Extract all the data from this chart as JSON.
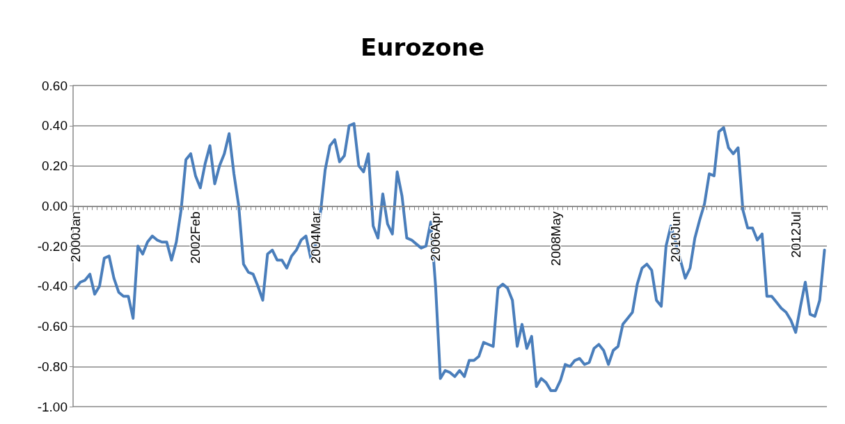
{
  "chart_data": {
    "type": "line",
    "title": "Eurozone",
    "categories": [
      "2000Jan",
      null,
      null,
      null,
      null,
      null,
      null,
      null,
      null,
      null,
      null,
      null,
      null,
      null,
      null,
      null,
      null,
      null,
      null,
      null,
      null,
      null,
      null,
      null,
      null,
      "2002Feb",
      null,
      null,
      null,
      null,
      null,
      null,
      null,
      null,
      null,
      null,
      null,
      null,
      null,
      null,
      null,
      null,
      null,
      null,
      null,
      null,
      null,
      null,
      null,
      null,
      "2004Mar",
      null,
      null,
      null,
      null,
      null,
      null,
      null,
      null,
      null,
      null,
      null,
      null,
      null,
      null,
      null,
      null,
      null,
      null,
      null,
      null,
      null,
      null,
      null,
      null,
      "2006Apr",
      null,
      null,
      null,
      null,
      null,
      null,
      null,
      null,
      null,
      null,
      null,
      null,
      null,
      null,
      null,
      null,
      null,
      null,
      null,
      null,
      null,
      null,
      null,
      null,
      "2008May",
      null,
      null,
      null,
      null,
      null,
      null,
      null,
      null,
      null,
      null,
      null,
      null,
      null,
      null,
      null,
      null,
      null,
      null,
      null,
      null,
      null,
      null,
      null,
      null,
      "2010Jun",
      null,
      null,
      null,
      null,
      null,
      null,
      null,
      null,
      null,
      null,
      null,
      null,
      null,
      null,
      null,
      null,
      null,
      null,
      null,
      null,
      null,
      null,
      null,
      null,
      "2012Jul",
      null,
      null,
      null,
      null,
      null,
      null
    ],
    "series": [
      {
        "color": "#4a7ebb",
        "values": [
          -0.41,
          -0.38,
          -0.37,
          -0.34,
          -0.44,
          -0.4,
          -0.26,
          -0.25,
          -0.36,
          -0.43,
          -0.45,
          -0.45,
          -0.56,
          -0.2,
          -0.24,
          -0.18,
          -0.15,
          -0.17,
          -0.18,
          -0.18,
          -0.27,
          -0.18,
          -0.02,
          0.23,
          0.26,
          0.15,
          0.09,
          0.21,
          0.3,
          0.11,
          0.2,
          0.26,
          0.36,
          0.16,
          0.0,
          -0.29,
          -0.33,
          -0.34,
          -0.4,
          -0.47,
          -0.24,
          -0.22,
          -0.27,
          -0.27,
          -0.31,
          -0.25,
          -0.22,
          -0.17,
          -0.15,
          -0.26,
          -0.19,
          -0.04,
          0.18,
          0.3,
          0.33,
          0.22,
          0.25,
          0.4,
          0.41,
          0.2,
          0.17,
          0.26,
          -0.1,
          -0.16,
          0.06,
          -0.09,
          -0.14,
          0.17,
          0.05,
          -0.16,
          -0.17,
          -0.19,
          -0.21,
          -0.2,
          -0.08,
          -0.4,
          -0.86,
          -0.82,
          -0.83,
          -0.85,
          -0.82,
          -0.85,
          -0.77,
          -0.77,
          -0.75,
          -0.68,
          -0.69,
          -0.7,
          -0.41,
          -0.39,
          -0.41,
          -0.47,
          -0.7,
          -0.59,
          -0.71,
          -0.65,
          -0.9,
          -0.86,
          -0.88,
          -0.92,
          -0.92,
          -0.87,
          -0.79,
          -0.8,
          -0.77,
          -0.76,
          -0.79,
          -0.78,
          -0.71,
          -0.69,
          -0.72,
          -0.79,
          -0.72,
          -0.7,
          -0.59,
          -0.56,
          -0.53,
          -0.39,
          -0.31,
          -0.29,
          -0.32,
          -0.47,
          -0.5,
          -0.2,
          -0.1,
          -0.18,
          -0.27,
          -0.36,
          -0.31,
          -0.16,
          -0.07,
          0.01,
          0.16,
          0.15,
          0.37,
          0.39,
          0.29,
          0.26,
          0.29,
          -0.02,
          -0.11,
          -0.11,
          -0.17,
          -0.14,
          -0.45,
          -0.45,
          -0.48,
          -0.51,
          -0.53,
          -0.57,
          -0.63,
          -0.5,
          -0.38,
          -0.54,
          -0.55,
          -0.47,
          -0.22
        ]
      }
    ],
    "ylim": [
      -1,
      0.6
    ],
    "yticks": [
      {
        "value": -1,
        "label": "-1.00"
      },
      {
        "value": -0.8,
        "label": "-0.80"
      },
      {
        "value": -0.6,
        "label": "-0.60"
      },
      {
        "value": -0.4,
        "label": "-0.40"
      },
      {
        "value": -0.2,
        "label": "-0.20"
      },
      {
        "value": 0,
        "label": "0.00"
      },
      {
        "value": 0.2,
        "label": "0.20"
      },
      {
        "value": 0.4,
        "label": "0.40"
      },
      {
        "value": 0.6,
        "label": "0.60"
      }
    ],
    "grid": "y",
    "marker": "none",
    "line_style": "solid"
  }
}
